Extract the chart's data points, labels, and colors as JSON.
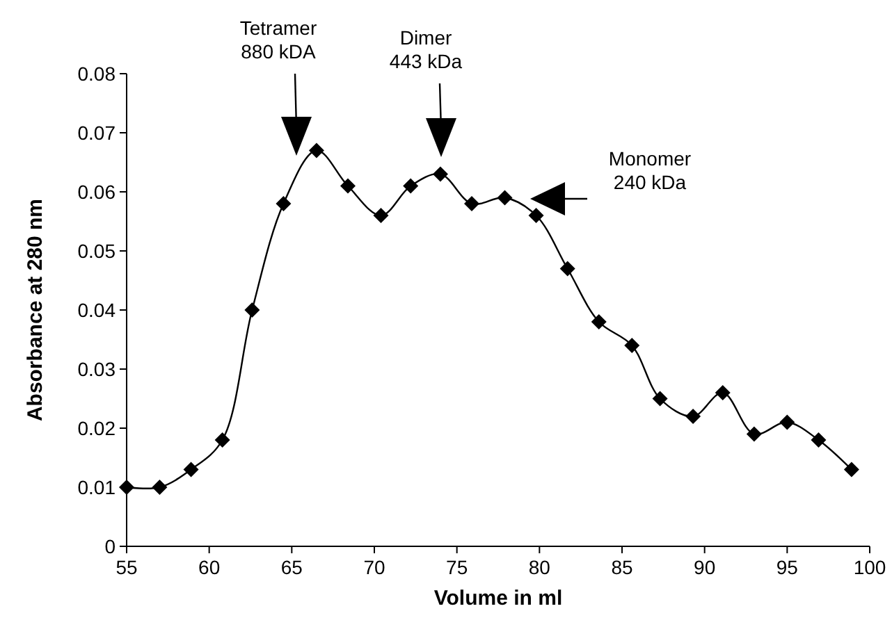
{
  "chart_data": {
    "type": "line",
    "xlabel": "Volume in ml",
    "ylabel": "Absorbance at 280 nm",
    "x": [
      55,
      57,
      58.9,
      60.8,
      62.6,
      64.5,
      66.5,
      68.4,
      70.4,
      72.2,
      74.0,
      75.9,
      77.9,
      79.8,
      81.7,
      83.6,
      85.6,
      87.3,
      89.3,
      91.1,
      93.0,
      95.0,
      96.9,
      98.9
    ],
    "series": [
      {
        "color": "#000000",
        "values": [
          0.01,
          0.01,
          0.013,
          0.018,
          0.04,
          0.058,
          0.067,
          0.061,
          0.056,
          0.061,
          0.063,
          0.058,
          0.059,
          0.056,
          0.047,
          0.038,
          0.034,
          0.025,
          0.022,
          0.026,
          0.019,
          0.021,
          0.018,
          0.013
        ]
      }
    ],
    "xlim": [
      55,
      100
    ],
    "xticks": [
      55,
      60,
      65,
      70,
      75,
      80,
      85,
      90,
      95,
      100
    ],
    "ylim": [
      0,
      0.08
    ],
    "yticks": [
      {
        "value": 0,
        "label": "0"
      },
      {
        "value": 0.01,
        "label": "0.01"
      },
      {
        "value": 0.02,
        "label": "0.02"
      },
      {
        "value": 0.03,
        "label": "0.03"
      },
      {
        "value": 0.04,
        "label": "0.04"
      },
      {
        "value": 0.05,
        "label": "0.05"
      },
      {
        "value": 0.06,
        "label": "0.06"
      },
      {
        "value": 0.07,
        "label": "0.07"
      },
      {
        "value": 0.08,
        "label": "0.08"
      }
    ],
    "grid": false,
    "marker": "diamond",
    "line_style": "solid",
    "annotations": [
      "Tetramer\n880 kDA",
      "Dimer\n443 kDa",
      "Monomer\n240 kDa"
    ]
  }
}
